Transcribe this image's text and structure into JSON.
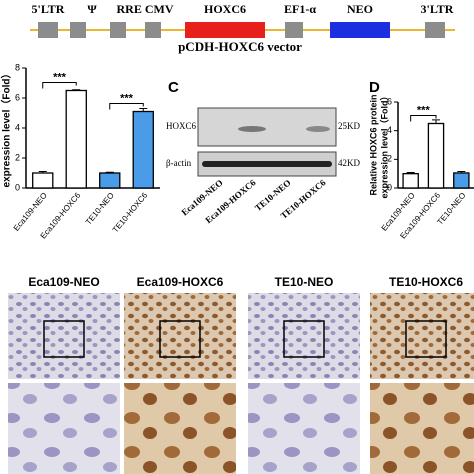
{
  "vector": {
    "labels": [
      "5'LTR",
      "Ψ",
      "RRE CMV",
      "HOXC6",
      "EF1-α",
      "NEO",
      "3'LTR"
    ],
    "title": "pCDH-HOXC6 vector"
  },
  "panel_b": {
    "ylabel": "expression level（Fold）",
    "categories": [
      "Eca109-NEO",
      "Eca109-HOXC6",
      "TE10-NEO",
      "TE10-HOXC6"
    ],
    "values": [
      1.0,
      6.5,
      1.0,
      5.1
    ],
    "errors": [
      0.1,
      0.05,
      0.05,
      0.2
    ],
    "colors": [
      "#ffffff",
      "#ffffff",
      "#4a9be8",
      "#4a9be8"
    ],
    "ylim": [
      0,
      8
    ],
    "yticks": [
      0,
      2,
      4,
      6,
      8
    ],
    "significance": [
      "***",
      "***"
    ]
  },
  "panel_c": {
    "label": "C",
    "rows": [
      {
        "name": "HOXC6",
        "size": "25KD"
      },
      {
        "name": "β-actin",
        "size": "42KD"
      }
    ],
    "lanes": [
      "Eca109-NEO",
      "Eca109-HOXC6",
      "TE10-NEO",
      "TE10-HOXC6"
    ]
  },
  "panel_d": {
    "label": "D",
    "ylabel": [
      "Relative HOXC6 protein",
      "expression level（Fold）"
    ],
    "categories": [
      "Eca109-NEO",
      "Eca109-HOXC6",
      "TE10-NEO"
    ],
    "values": [
      1.0,
      4.5,
      1.05
    ],
    "errors": [
      0.08,
      0.25,
      0.1
    ],
    "colors": [
      "#ffffff",
      "#ffffff",
      "#4a9be8"
    ],
    "ylim": [
      0,
      6
    ],
    "yticks": [
      0,
      2,
      4,
      6
    ],
    "significance": [
      "***"
    ]
  },
  "panel_e": {
    "columns": [
      "Eca109-NEO",
      "Eca109-HOXC6",
      "TE10-NEO",
      "TE10-HOXC6"
    ]
  }
}
